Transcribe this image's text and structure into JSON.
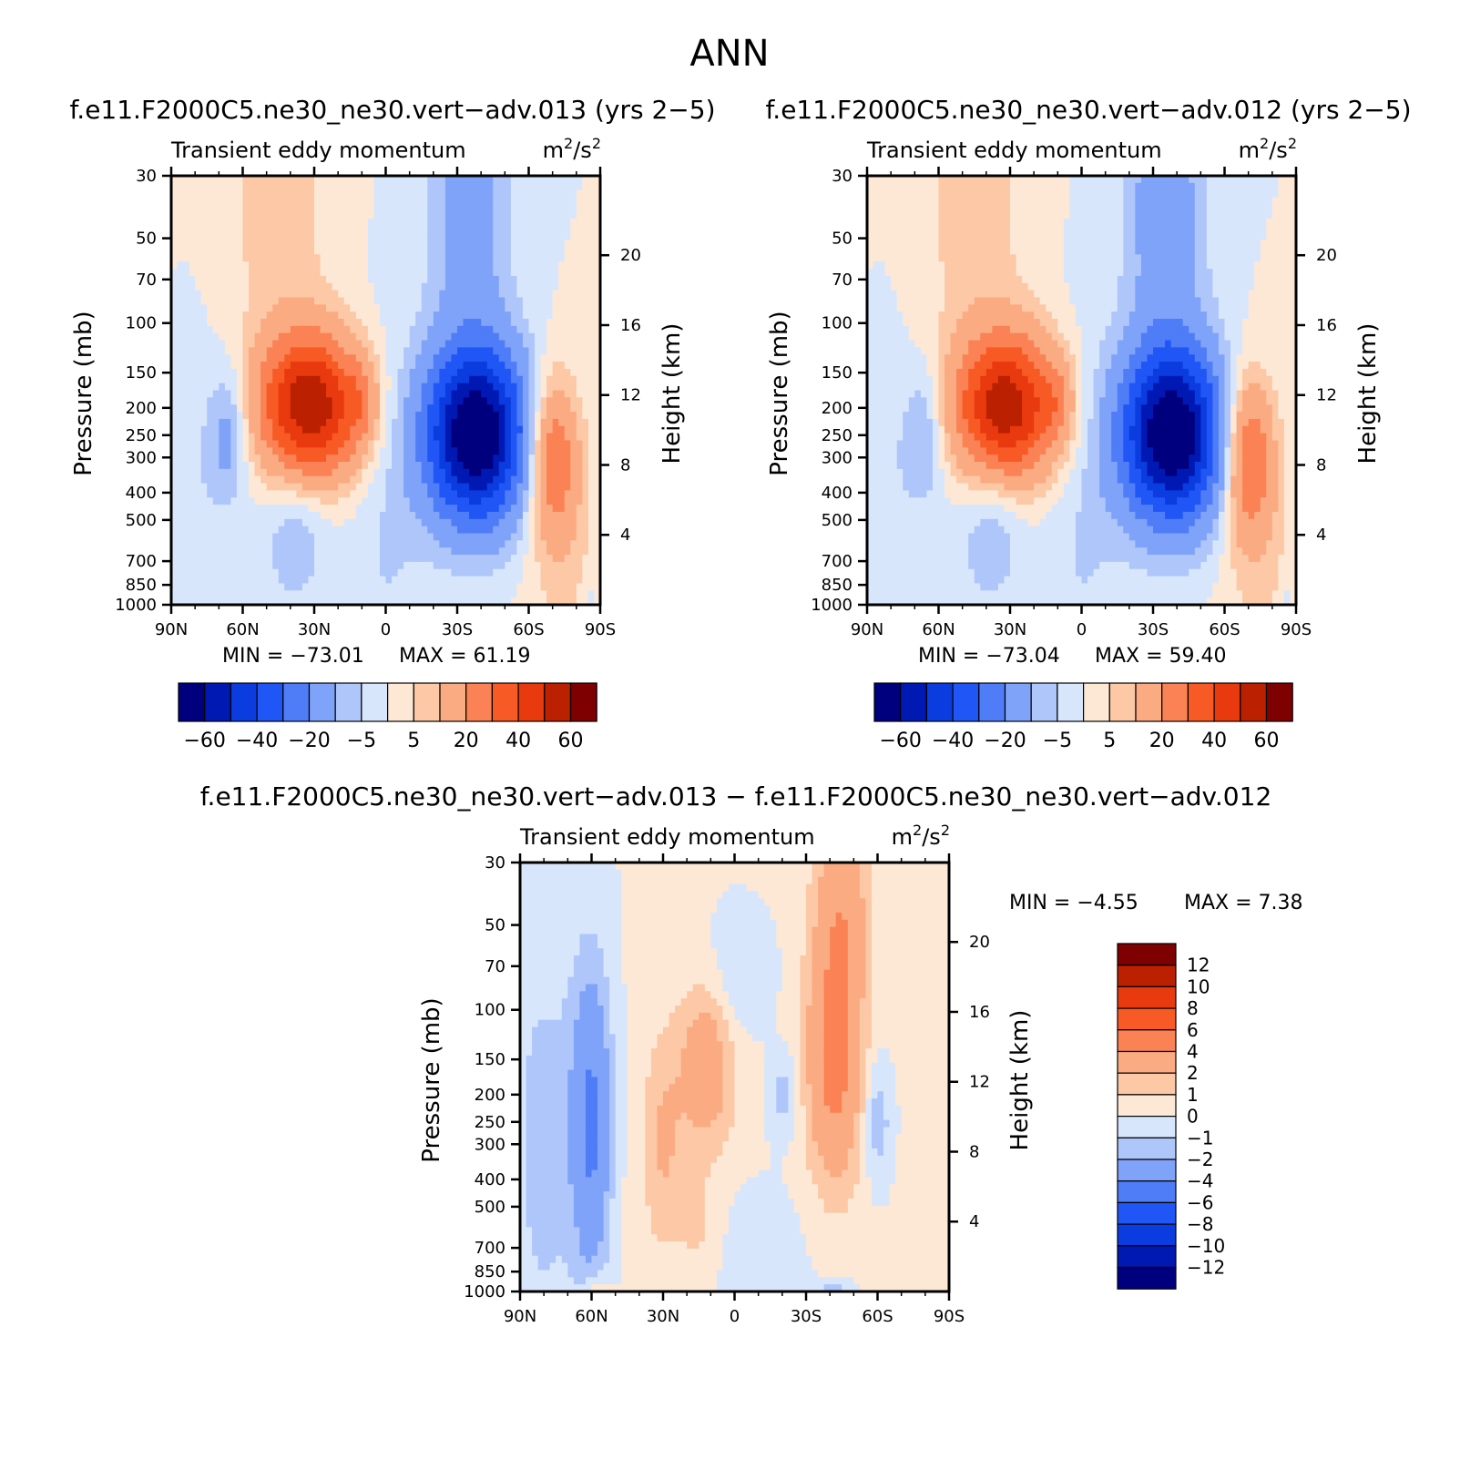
{
  "figure": {
    "title": "ANN"
  },
  "colors": {
    "field_cmap": [
      "#00007f",
      "#0019b3",
      "#0a3ce0",
      "#2056f5",
      "#4f7cf7",
      "#7fa3f8",
      "#aec6fa",
      "#d8e6fc",
      "#fde8d6",
      "#fcc8a6",
      "#fbab82",
      "#fa8254",
      "#f85a25",
      "#e83a0e",
      "#bb2000",
      "#7f0000"
    ],
    "diff_cmap": [
      "#00007f",
      "#0019b3",
      "#0a3ce0",
      "#2056f5",
      "#4f7cf7",
      "#7fa3f8",
      "#aec6fa",
      "#d8e6fc",
      "#fde8d6",
      "#fcc8a6",
      "#fbab82",
      "#fa8254",
      "#f85a25",
      "#e83a0e",
      "#bb2000",
      "#7f0000"
    ]
  },
  "chart_data": [
    {
      "type": "heatmap",
      "title": "f.e11.F2000C5.ne30_ne30.vert−adv.013 (yrs 2−5)",
      "subtitle_left": "Transient eddy momentum",
      "units": "m²/s²",
      "units_base": "m",
      "units_sep": "/s",
      "units_exp": "2",
      "xlabel": "",
      "ylabel": "Pressure (mb)",
      "ylabel_right": "Height (km)",
      "x_ticks": [
        "90N",
        "60N",
        "30N",
        "0",
        "30S",
        "60S",
        "90S"
      ],
      "y_ticks": [
        "30",
        "50",
        "70",
        "100",
        "150",
        "200",
        "250",
        "300",
        "400",
        "500",
        "700",
        "850",
        "1000"
      ],
      "y_right_ticks": [
        "20",
        "16",
        "12",
        "8",
        "4"
      ],
      "min_label": "MIN = −73.01",
      "max_label": "MAX = 61.19",
      "min": -73.01,
      "max": 61.19,
      "colorbar_labels": [
        "−60",
        "−40",
        "−20",
        "−5",
        "5",
        "20",
        "40",
        "60"
      ],
      "features": [
        {
          "lat": 32,
          "p": 200,
          "value": 61.19
        },
        {
          "lat": -38,
          "p": 250,
          "value": -73.01
        },
        {
          "lat": -70,
          "p": 300,
          "value": 30
        },
        {
          "lat": 66,
          "p": 250,
          "value": -15
        }
      ]
    },
    {
      "type": "heatmap",
      "title": "f.e11.F2000C5.ne30_ne30.vert−adv.012 (yrs 2−5)",
      "subtitle_left": "Transient eddy momentum",
      "units": "m²/s²",
      "units_base": "m",
      "units_sep": "/s",
      "units_exp": "2",
      "xlabel": "",
      "ylabel": "Pressure (mb)",
      "ylabel_right": "Height (km)",
      "x_ticks": [
        "90N",
        "60N",
        "30N",
        "0",
        "30S",
        "60S",
        "90S"
      ],
      "y_ticks": [
        "30",
        "50",
        "70",
        "100",
        "150",
        "200",
        "250",
        "300",
        "400",
        "500",
        "700",
        "850",
        "1000"
      ],
      "y_right_ticks": [
        "20",
        "16",
        "12",
        "8",
        "4"
      ],
      "min_label": "MIN = −73.04",
      "max_label": "MAX = 59.40",
      "min": -73.04,
      "max": 59.4,
      "colorbar_labels": [
        "−60",
        "−40",
        "−20",
        "−5",
        "5",
        "20",
        "40",
        "60"
      ],
      "features": [
        {
          "lat": 32,
          "p": 200,
          "value": 59.4
        },
        {
          "lat": -38,
          "p": 250,
          "value": -73.04
        },
        {
          "lat": -70,
          "p": 300,
          "value": 32
        },
        {
          "lat": 66,
          "p": 250,
          "value": -13
        }
      ]
    },
    {
      "type": "heatmap",
      "title": "f.e11.F2000C5.ne30_ne30.vert−adv.013 − f.e11.F2000C5.ne30_ne30.vert−adv.012",
      "subtitle_left": "Transient eddy momentum",
      "units": "m²/s²",
      "units_base": "m",
      "units_sep": "/s",
      "units_exp": "2",
      "xlabel": "",
      "ylabel": "Pressure (mb)",
      "ylabel_right": "Height (km)",
      "x_ticks": [
        "90N",
        "60N",
        "30N",
        "0",
        "30S",
        "60S",
        "90S"
      ],
      "y_ticks": [
        "30",
        "50",
        "70",
        "100",
        "150",
        "200",
        "250",
        "300",
        "400",
        "500",
        "700",
        "850",
        "1000"
      ],
      "y_right_ticks": [
        "20",
        "16",
        "12",
        "8",
        "4"
      ],
      "min_label": "MIN = −4.55",
      "max_label": "MAX = 7.38",
      "min": -4.55,
      "max": 7.38,
      "colorbar_labels": [
        "12",
        "10",
        "8",
        "6",
        "4",
        "2",
        "1",
        "0",
        "−1",
        "−2",
        "−4",
        "−6",
        "−8",
        "−10",
        "−12"
      ],
      "features": [
        {
          "lat": 60,
          "p": 250,
          "value": -4.55
        },
        {
          "lat": -42,
          "p": 150,
          "value": 4.5
        },
        {
          "lat": 12,
          "p": 150,
          "value": 3
        },
        {
          "lat": -20,
          "p": 200,
          "value": -1.5
        }
      ]
    }
  ]
}
